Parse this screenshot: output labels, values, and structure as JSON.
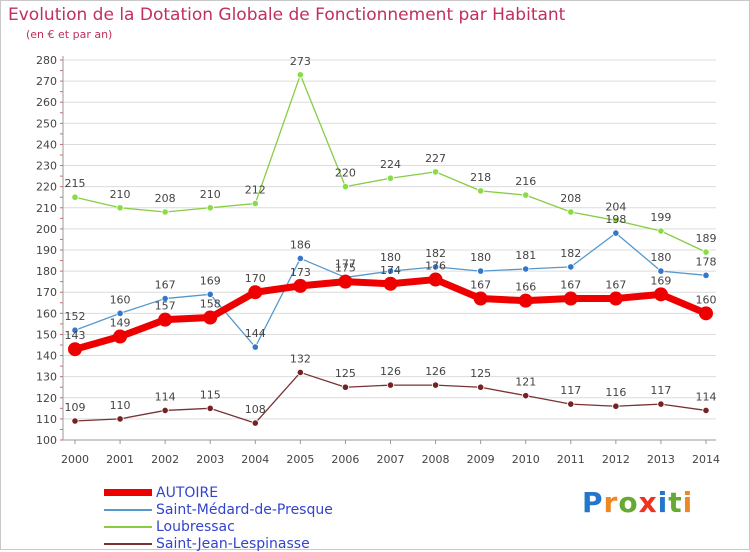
{
  "header": {
    "title": "Evolution de la Dotation Globale de Fonctionnement par Habitant",
    "subtitle": "(en € et par an)"
  },
  "colors": {
    "grid": "#dcdcdc",
    "axis": "#999999",
    "text": "#444444",
    "title": "#c0305a"
  },
  "chart_data": {
    "type": "line",
    "x": [
      "2000",
      "2001",
      "2002",
      "2003",
      "2004",
      "2005",
      "2006",
      "2007",
      "2008",
      "2009",
      "2010",
      "2011",
      "2012",
      "2013",
      "2014"
    ],
    "ylim": [
      100,
      280
    ],
    "yticks": [
      100,
      110,
      120,
      130,
      140,
      150,
      160,
      170,
      180,
      190,
      200,
      210,
      220,
      230,
      240,
      250,
      260,
      270,
      280
    ],
    "grid": "horizontal",
    "legend_position": "bottom-left",
    "series": [
      {
        "name": "Loubressac",
        "color": "#88cc44",
        "marker_fill": "#88dd44",
        "values": [
          215,
          210,
          208,
          210,
          212,
          273,
          220,
          224,
          227,
          218,
          216,
          208,
          204,
          199,
          189
        ]
      },
      {
        "name": "Saint-Médard-de-Presque",
        "color": "#5599cc",
        "marker_fill": "#3377cc",
        "values": [
          152,
          160,
          167,
          169,
          144,
          186,
          177,
          180,
          182,
          180,
          181,
          182,
          198,
          180,
          178
        ]
      },
      {
        "name": "Saint-Jean-Lespinasse",
        "color": "#773333",
        "marker_fill": "#772222",
        "values": [
          109,
          110,
          114,
          115,
          108,
          132,
          125,
          126,
          126,
          125,
          121,
          117,
          116,
          117,
          114
        ]
      },
      {
        "name": "AUTOIRE",
        "color": "#ee0000",
        "marker_fill": "#ee0000",
        "values": [
          143,
          149,
          157,
          158,
          170,
          173,
          175,
          174,
          176,
          167,
          166,
          167,
          167,
          169,
          160
        ]
      }
    ],
    "legend_order": [
      "AUTOIRE",
      "Saint-Médard-de-Presque",
      "Loubressac",
      "Saint-Jean-Lespinasse"
    ]
  },
  "logo": {
    "letters": [
      {
        "char": "P",
        "color": "#2277cc"
      },
      {
        "char": "r",
        "color": "#ee8822"
      },
      {
        "char": "o",
        "color": "#66aa33"
      },
      {
        "char": "x",
        "color": "#ee3322"
      },
      {
        "char": "i",
        "color": "#2277cc"
      },
      {
        "char": "t",
        "color": "#66aa33"
      },
      {
        "char": "i",
        "color": "#ee8822"
      }
    ]
  }
}
